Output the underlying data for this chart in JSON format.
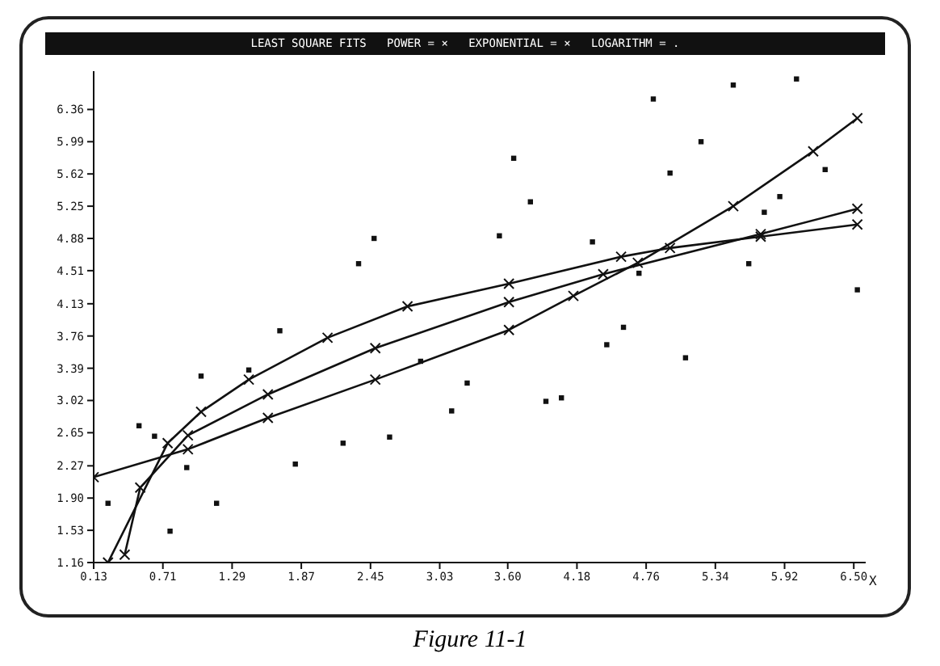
{
  "chart_data": {
    "type": "scatter",
    "title": "LEAST SQUARE FITS   POWER = ×   EXPONENTIAL = ×   LOGARITHM = .",
    "xlabel": "X",
    "annotations": [
      "Figure 11-1"
    ],
    "xlim": [
      0.13,
      6.6
    ],
    "ylim": [
      1.16,
      6.8
    ],
    "xticks": [
      0.13,
      0.71,
      1.29,
      1.87,
      2.45,
      3.03,
      {
        "value": 3.6,
        "label": "3.60"
      },
      4.18,
      4.76,
      5.34,
      5.92,
      {
        "value": 6.5,
        "label": "6.50"
      }
    ],
    "yticks": [
      1.16,
      1.53,
      {
        "value": 1.9,
        "label": "1.90"
      },
      2.27,
      2.65,
      3.02,
      3.39,
      3.76,
      4.13,
      4.51,
      4.88,
      5.25,
      5.62,
      5.99,
      6.36
    ],
    "series": [
      {
        "color": "#111111",
        "marker": "square",
        "x": [
          0.25,
          0.51,
          0.64,
          0.77,
          0.91,
          1.03,
          1.16,
          1.43,
          1.69,
          1.82,
          2.22,
          2.35,
          2.48,
          2.61,
          2.87,
          3.13,
          3.26,
          3.53,
          3.65,
          3.79,
          3.92,
          4.05,
          4.31,
          4.43,
          4.57,
          4.7,
          4.82,
          4.96,
          5.09,
          5.22,
          5.49,
          5.62,
          5.75,
          5.88,
          6.02,
          6.26,
          6.53
        ],
        "values": [
          1.84,
          2.73,
          2.61,
          1.52,
          2.25,
          3.3,
          1.84,
          3.37,
          3.82,
          2.29,
          2.53,
          4.59,
          4.88,
          2.6,
          3.47,
          2.9,
          3.22,
          4.91,
          5.8,
          5.3,
          3.01,
          3.05,
          4.84,
          3.66,
          3.86,
          4.48,
          6.48,
          5.63,
          3.51,
          5.99,
          6.64,
          4.59,
          5.18,
          5.36,
          6.71,
          5.67,
          4.29
        ]
      },
      {
        "type": "line",
        "color": "#111111",
        "marker": "cross",
        "x": [
          0.25,
          0.75,
          1.03,
          1.43,
          2.09,
          2.76,
          3.61,
          4.55,
          4.96,
          5.72,
          6.53
        ],
        "values": [
          1.16,
          2.53,
          2.89,
          3.26,
          3.74,
          4.1,
          4.36,
          4.67,
          4.77,
          4.9,
          5.04
        ]
      },
      {
        "type": "line",
        "color": "#111111",
        "marker": "cross",
        "x": [
          0.39,
          0.52,
          0.92,
          1.59,
          2.49,
          3.61,
          4.4,
          5.72,
          6.53
        ],
        "values": [
          1.25,
          2.02,
          2.62,
          3.09,
          3.62,
          4.15,
          4.47,
          4.93,
          5.22
        ]
      },
      {
        "type": "line",
        "color": "#111111",
        "marker": "cross",
        "x": [
          0.13,
          0.92,
          1.59,
          2.49,
          3.61,
          4.15,
          4.69,
          5.49,
          6.16,
          6.53
        ],
        "values": [
          2.14,
          2.46,
          2.82,
          3.26,
          3.83,
          4.22,
          4.6,
          5.25,
          5.88,
          6.26
        ]
      }
    ]
  }
}
